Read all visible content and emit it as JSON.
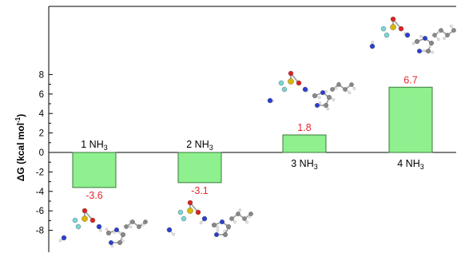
{
  "chart_data": {
    "type": "bar",
    "categories": [
      "1 NH3",
      "2 NH3",
      "3 NH3",
      "4 NH3"
    ],
    "category_labels": [
      {
        "base": "1 NH",
        "sub": "3"
      },
      {
        "base": "2 NH",
        "sub": "3"
      },
      {
        "base": "3 NH",
        "sub": "3"
      },
      {
        "base": "4 NH",
        "sub": "3"
      }
    ],
    "values": [
      -3.6,
      -3.1,
      1.8,
      6.7
    ],
    "value_labels": [
      "-3.6",
      "-3.1",
      "1.8",
      "6.7"
    ],
    "title": "",
    "xlabel": "",
    "ylabel": "ΔG (kcal mol⁻¹)",
    "ylabel_parts": {
      "main": "ΔG (kcal mol",
      "sup": "-1",
      "close": ")"
    },
    "ylim": [
      -10.5,
      14.5
    ],
    "yticks": [
      -8,
      -6,
      -4,
      -2,
      0,
      2,
      4,
      6,
      8
    ],
    "ytick_labels": [
      "-8",
      "-6",
      "-4",
      "-2",
      "0",
      "2",
      "4",
      "6",
      "8"
    ],
    "grid": false,
    "bar_color": "#8ef08e",
    "bar_edge_color": "#3a7a3a",
    "value_label_color": "#e8262b",
    "images": [
      "molecular-structure-1-nh3",
      "molecular-structure-2-nh3",
      "molecular-structure-3-nh3",
      "molecular-structure-4-nh3"
    ]
  }
}
